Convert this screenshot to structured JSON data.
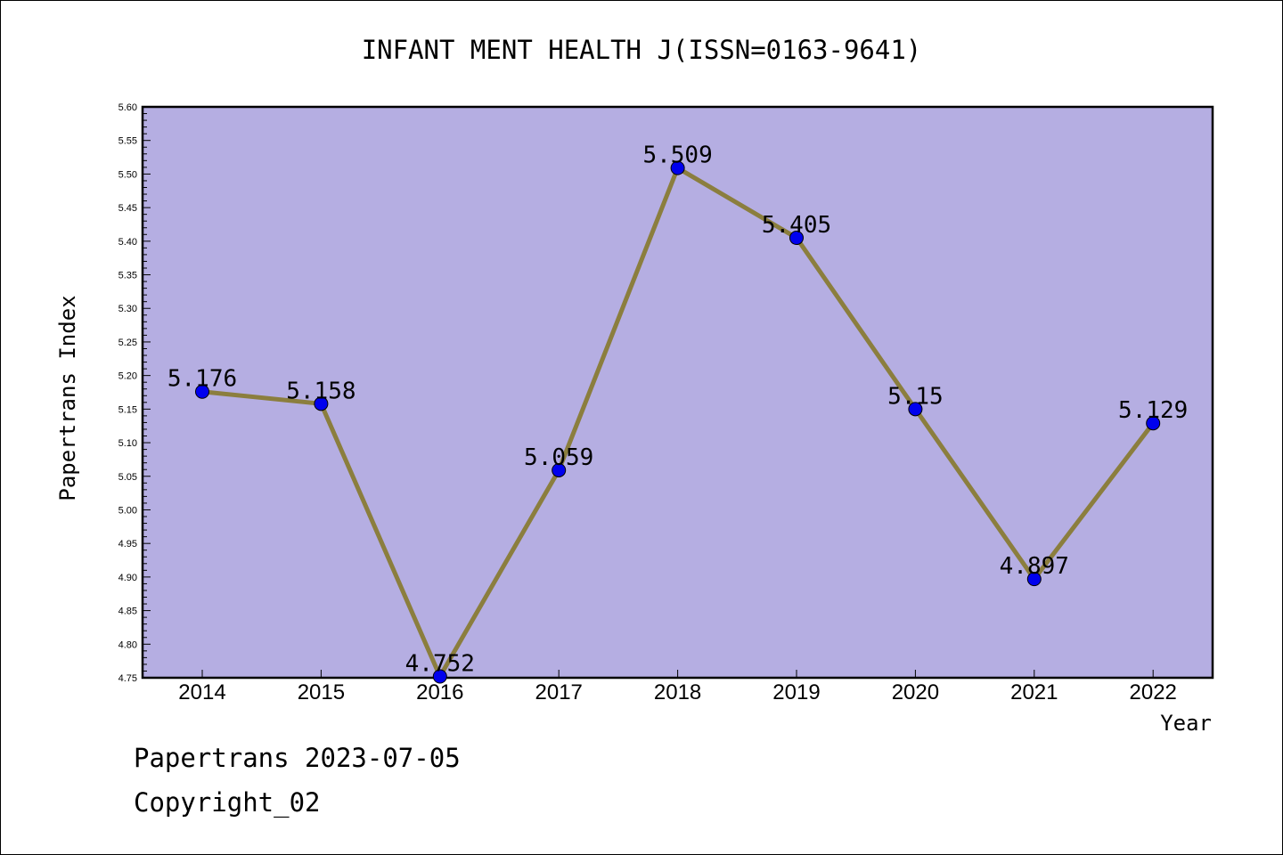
{
  "chart_data": {
    "type": "line",
    "title": "INFANT MENT HEALTH J(ISSN=0163-9641)",
    "xlabel": "Year",
    "ylabel": "Papertrans Index",
    "categories": [
      "2014",
      "2015",
      "2016",
      "2017",
      "2018",
      "2019",
      "2020",
      "2021",
      "2022"
    ],
    "values": [
      5.176,
      5.158,
      4.752,
      5.059,
      5.509,
      5.405,
      5.15,
      4.897,
      5.129
    ],
    "data_labels": [
      "5.176",
      "5.158",
      "4.752",
      "5.059",
      "5.509",
      "5.405",
      "5.15",
      "4.897",
      "5.129"
    ],
    "ylim": [
      4.75,
      5.6
    ],
    "yticks": [
      "4.75",
      "4.80",
      "4.85",
      "4.90",
      "4.95",
      "5.00",
      "5.05",
      "5.10",
      "5.15",
      "5.20",
      "5.25",
      "5.30",
      "5.35",
      "5.40",
      "5.45",
      "5.50",
      "5.55",
      "5.60"
    ],
    "grid": false,
    "legend": "none",
    "colors": {
      "plot_background": "#b5aee2",
      "line": "#8b7e3e",
      "marker": "#0000ee"
    }
  },
  "footer": {
    "line1": "Papertrans 2023-07-05",
    "line2": "Copyright_02"
  }
}
